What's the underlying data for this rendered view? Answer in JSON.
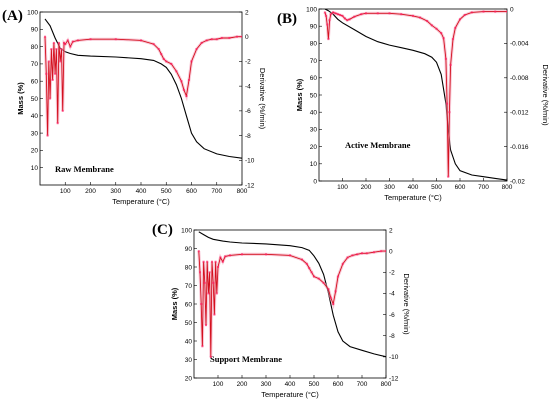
{
  "chart_data": [
    {
      "panel": "(A)",
      "type": "line",
      "sample_label": "Raw Membrane",
      "xlabel": "Temperature (°C)",
      "ylabel": "Mass (%)",
      "y2label": "Derivative (%/min)",
      "xlim": [
        0,
        800
      ],
      "ylim": [
        0,
        100
      ],
      "y2lim": [
        -12,
        2
      ],
      "xticks": [
        "100",
        "200",
        "300",
        "400",
        "500",
        "600",
        "700",
        "800"
      ],
      "yticks": [
        "10",
        "20",
        "30",
        "40",
        "50",
        "60",
        "70",
        "80",
        "90",
        "100"
      ],
      "y2ticks": [
        "2",
        "0",
        "-2",
        "-4",
        "-6",
        "-8",
        "-10",
        "-12"
      ],
      "series": [
        {
          "axis": "left",
          "color": "#000000",
          "x": [
            20,
            40,
            60,
            80,
            100,
            120,
            150,
            200,
            300,
            400,
            450,
            480,
            500,
            520,
            540,
            560,
            580,
            600,
            620,
            650,
            700,
            750,
            800
          ],
          "y": [
            96,
            92,
            85,
            79,
            77,
            76,
            75,
            74.5,
            74,
            73,
            72,
            70,
            68,
            64,
            58,
            50,
            40,
            30,
            25,
            21,
            18,
            16.5,
            15.5
          ]
        },
        {
          "axis": "right",
          "color": "#d4101e",
          "x": [
            20,
            25,
            30,
            35,
            40,
            45,
            50,
            55,
            60,
            65,
            70,
            75,
            80,
            85,
            90,
            95,
            100,
            110,
            120,
            130,
            150,
            200,
            300,
            400,
            450,
            470,
            480,
            490,
            500,
            520,
            540,
            560,
            570,
            580,
            590,
            600,
            620,
            640,
            660,
            680,
            700,
            720,
            750,
            780,
            800
          ],
          "y": [
            0,
            -3,
            -8,
            -2,
            -5,
            -1,
            -3.5,
            -0.5,
            -3,
            -1,
            -7,
            -0.5,
            -2,
            -1,
            -6,
            -0.5,
            -0.6,
            -0.3,
            -0.8,
            -0.4,
            -0.3,
            -0.2,
            -0.2,
            -0.3,
            -0.6,
            -1,
            -1.4,
            -1.8,
            -2,
            -2.2,
            -2.8,
            -3.6,
            -4.3,
            -4.8,
            -3.5,
            -2,
            -1,
            -0.5,
            -0.3,
            -0.2,
            -0.2,
            -0.1,
            -0.1,
            0,
            0
          ]
        }
      ]
    },
    {
      "panel": "(B)",
      "type": "line",
      "sample_label": "Active Membrane",
      "xlabel": "Temperature (°C)",
      "ylabel": "Mass (%)",
      "y2label": "Derivative (%/min)",
      "xlim": [
        0,
        800
      ],
      "ylim": [
        0,
        100
      ],
      "y2lim": [
        -0.02,
        0
      ],
      "xticks": [
        "100",
        "200",
        "300",
        "400",
        "500",
        "600",
        "700",
        "800"
      ],
      "yticks": [
        "0",
        "10",
        "20",
        "30",
        "40",
        "50",
        "60",
        "70",
        "80",
        "90",
        "100"
      ],
      "y2ticks": [
        "0",
        "-0.004",
        "-0.008",
        "-0.012",
        "-0.016",
        "-0.02"
      ],
      "series": [
        {
          "axis": "left",
          "color": "#000000",
          "x": [
            25,
            40,
            60,
            80,
            100,
            150,
            200,
            250,
            300,
            350,
            400,
            450,
            480,
            500,
            520,
            540,
            550,
            560,
            580,
            600,
            650,
            700,
            750,
            800
          ],
          "y": [
            100,
            99,
            97,
            94,
            92,
            88,
            84,
            81,
            79,
            77.5,
            76,
            74,
            72,
            69,
            62,
            45,
            30,
            18,
            10,
            6,
            3.5,
            2.5,
            1.5,
            0.5
          ]
        },
        {
          "axis": "right",
          "color": "#d4101e",
          "x": [
            25,
            30,
            35,
            40,
            45,
            50,
            60,
            70,
            80,
            90,
            100,
            110,
            120,
            130,
            150,
            180,
            200,
            250,
            300,
            350,
            400,
            430,
            460,
            480,
            500,
            520,
            530,
            540,
            545,
            550,
            555,
            560,
            570,
            580,
            600,
            620,
            650,
            700,
            750,
            800
          ],
          "y": [
            -0.0004,
            -0.0008,
            -0.0018,
            -0.0035,
            -0.0013,
            -0.0006,
            -0.0004,
            -0.0005,
            -0.0006,
            -0.0007,
            -0.0008,
            -0.0011,
            -0.0013,
            -0.0012,
            -0.0009,
            -0.0006,
            -0.0005,
            -0.0005,
            -0.0005,
            -0.0006,
            -0.0008,
            -0.001,
            -0.0014,
            -0.0019,
            -0.0023,
            -0.0028,
            -0.0034,
            -0.0058,
            -0.011,
            -0.0195,
            -0.012,
            -0.0065,
            -0.0035,
            -0.0022,
            -0.0012,
            -0.0007,
            -0.0004,
            -0.0003,
            -0.0003,
            -0.0003
          ]
        }
      ]
    },
    {
      "panel": "(C)",
      "type": "line",
      "sample_label": "Support Membrane",
      "xlabel": "Temperature (°C)",
      "ylabel": "Mass (%)",
      "y2label": "Derivative (%/min)",
      "xlim": [
        0,
        800
      ],
      "ylim": [
        20,
        100
      ],
      "y2lim": [
        -12,
        2
      ],
      "xticks": [
        "100",
        "200",
        "300",
        "400",
        "500",
        "600",
        "700",
        "800"
      ],
      "yticks": [
        "20",
        "30",
        "40",
        "50",
        "60",
        "70",
        "80",
        "90",
        "100"
      ],
      "y2ticks": [
        "2",
        "0",
        "-2",
        "-4",
        "-6",
        "-8",
        "-10",
        "-12"
      ],
      "series": [
        {
          "axis": "left",
          "color": "#000000",
          "x": [
            20,
            40,
            60,
            80,
            100,
            120,
            150,
            200,
            300,
            400,
            450,
            480,
            500,
            520,
            540,
            560,
            580,
            600,
            620,
            650,
            700,
            750,
            800
          ],
          "y": [
            99,
            97.5,
            96,
            95,
            94.5,
            94,
            93.5,
            93,
            92.5,
            91.5,
            90.5,
            89,
            86,
            82,
            76,
            66,
            54,
            45,
            40,
            37,
            35,
            33,
            31.5
          ]
        },
        {
          "axis": "right",
          "color": "#d4101e",
          "x": [
            20,
            25,
            30,
            35,
            40,
            45,
            50,
            55,
            60,
            65,
            70,
            75,
            80,
            85,
            90,
            95,
            100,
            110,
            120,
            130,
            150,
            200,
            300,
            400,
            450,
            470,
            480,
            490,
            500,
            520,
            540,
            560,
            570,
            580,
            590,
            600,
            620,
            640,
            660,
            680,
            700,
            720,
            750,
            780,
            800
          ],
          "y": [
            0,
            -2,
            -5,
            -9,
            -1,
            -3,
            -7,
            -1,
            -4,
            -2,
            -10,
            -1,
            -3,
            -6,
            -1,
            -4,
            -1.5,
            -0.6,
            -1,
            -0.5,
            -0.4,
            -0.3,
            -0.3,
            -0.4,
            -0.8,
            -1.2,
            -1.6,
            -2,
            -2.4,
            -2.6,
            -3,
            -3.6,
            -4.4,
            -5,
            -3.8,
            -2.4,
            -1.2,
            -0.6,
            -0.4,
            -0.3,
            -0.2,
            -0.2,
            -0.1,
            0,
            0
          ]
        }
      ]
    }
  ]
}
